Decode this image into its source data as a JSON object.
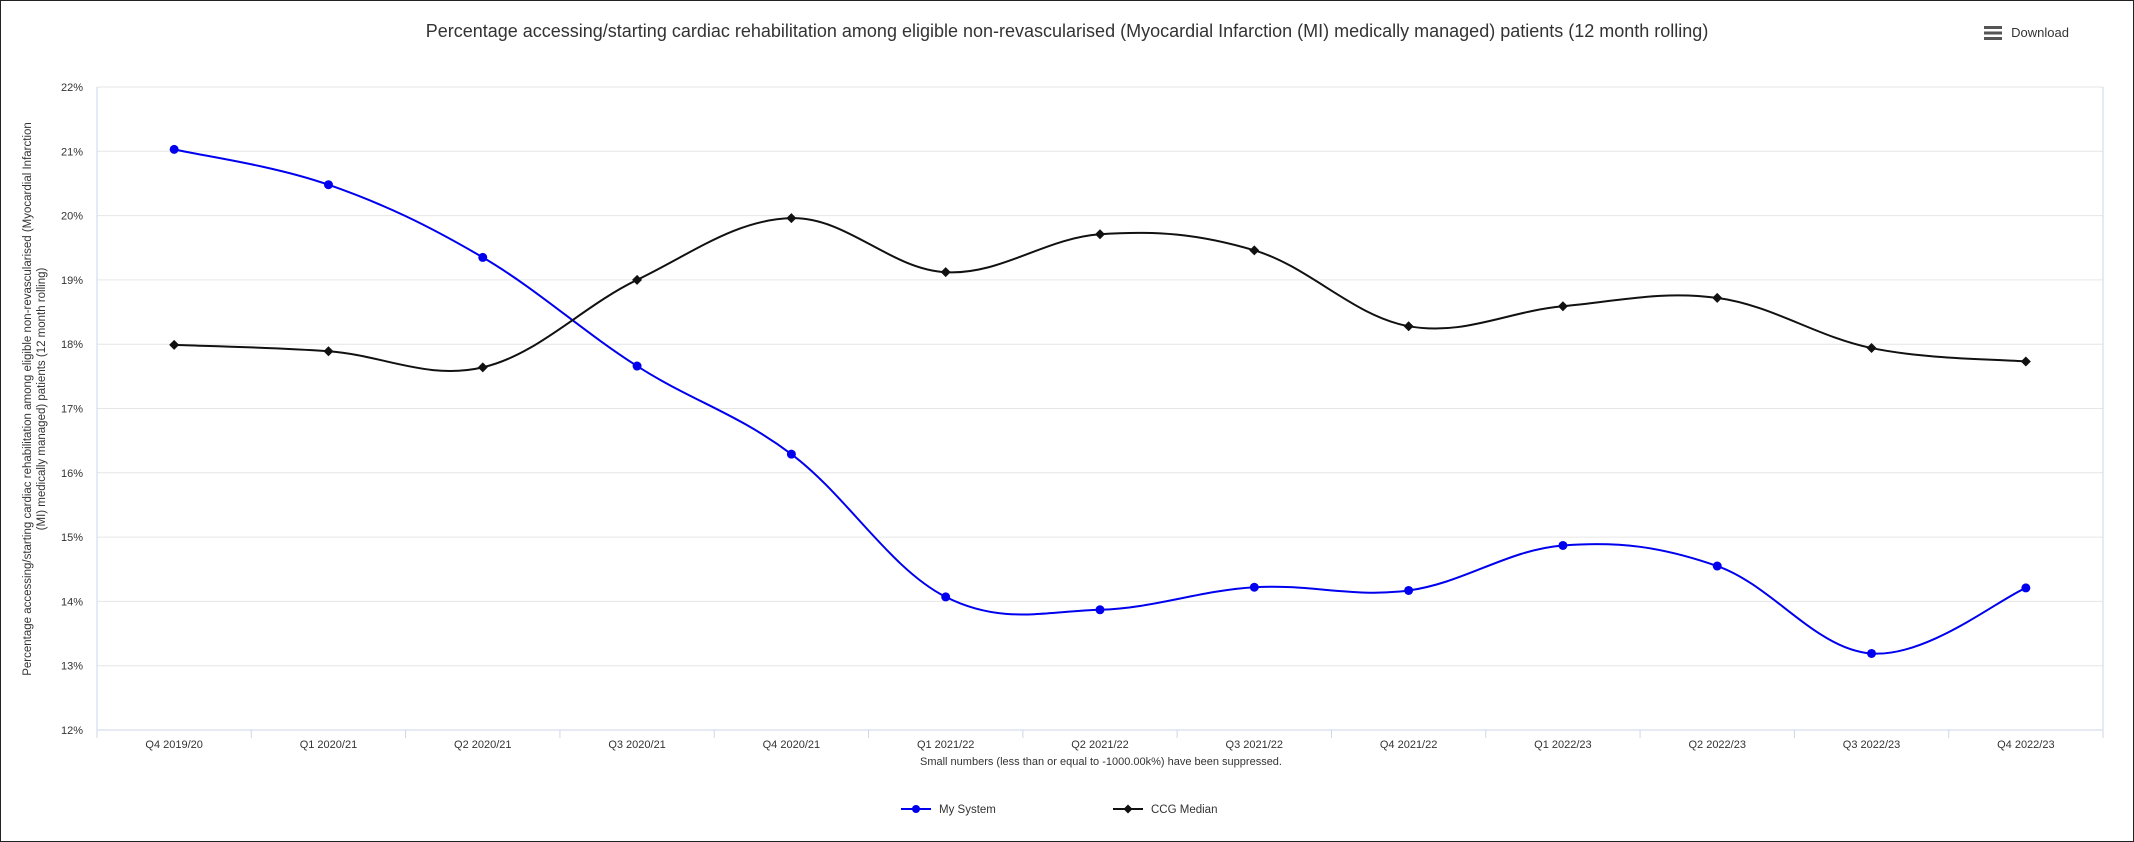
{
  "download_label": "Download",
  "footnote": "Small numbers (less than or equal to -1000.00k%) have been suppressed.",
  "colors": {
    "my_system": "#0000ee",
    "ccg_median": "#111111",
    "grid": "#e6e6e6",
    "axis": "#ccd6eb"
  },
  "chart_data": {
    "type": "line",
    "title": "Percentage accessing/starting cardiac rehabilitation among eligible non-revascularised (Myocardial Infarction (MI) medically managed) patients (12 month rolling)",
    "ylabel_lines": [
      "Percentage accessing/starting cardiac rehabilitation among eligible non-revascularised (Myocardial Infarction",
      "(MI) medically managed) patients (12 month rolling)"
    ],
    "xlabel": "",
    "categories": [
      "Q4 2019/20",
      "Q1 2020/21",
      "Q2 2020/21",
      "Q3 2020/21",
      "Q4 2020/21",
      "Q1 2021/22",
      "Q2 2021/22",
      "Q3 2021/22",
      "Q4 2021/22",
      "Q1 2022/23",
      "Q2 2022/23",
      "Q3 2022/23",
      "Q4 2022/23"
    ],
    "ylim": [
      12,
      22
    ],
    "yticks": [
      12,
      13,
      14,
      15,
      16,
      17,
      18,
      19,
      20,
      21,
      22
    ],
    "ytick_labels": [
      "12%",
      "13%",
      "14%",
      "15%",
      "16%",
      "17%",
      "18%",
      "19%",
      "20%",
      "21%",
      "22%"
    ],
    "grid": true,
    "legend_position": "bottom-center",
    "series": [
      {
        "name": "My System",
        "marker": "circle",
        "values": [
          21.03,
          20.48,
          19.35,
          17.66,
          16.29,
          14.07,
          13.87,
          14.22,
          14.17,
          14.87,
          14.55,
          13.19,
          14.21
        ]
      },
      {
        "name": "CCG Median",
        "marker": "diamond",
        "values": [
          17.99,
          17.89,
          17.64,
          19.0,
          19.96,
          19.12,
          19.71,
          19.46,
          18.28,
          18.59,
          18.72,
          17.94,
          17.73
        ]
      }
    ]
  }
}
